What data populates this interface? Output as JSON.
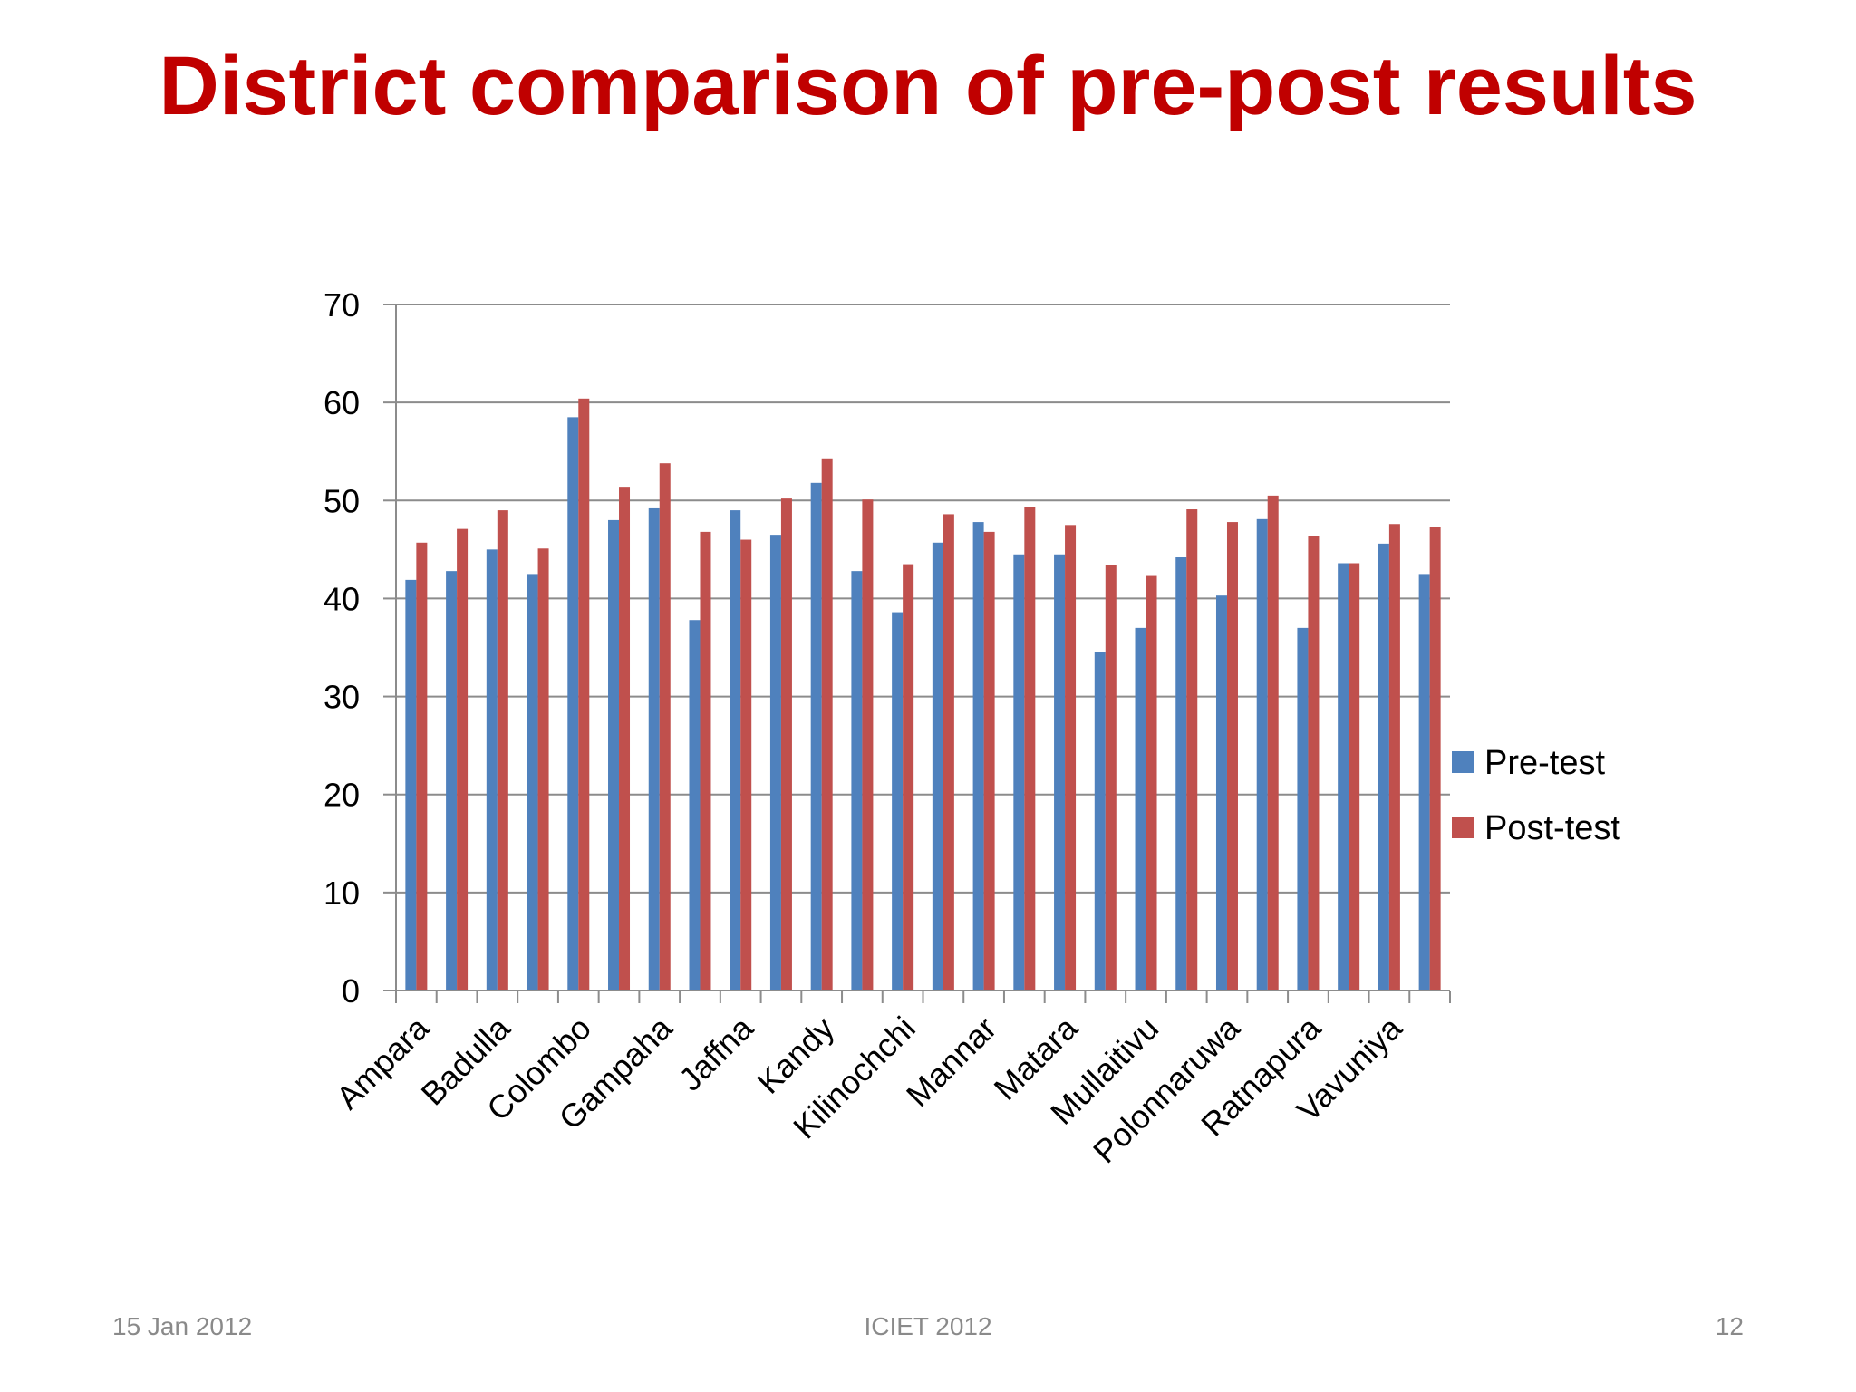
{
  "slide": {
    "title": "District comparison of pre-post results",
    "footer_date": "15 Jan 2012",
    "footer_conference": "ICIET 2012",
    "footer_page": "12",
    "title_color": "#c00000"
  },
  "chart_data": {
    "type": "bar",
    "title": "",
    "xlabel": "",
    "ylabel": "",
    "ylim": [
      0,
      70
    ],
    "yticks": [
      0,
      10,
      20,
      30,
      40,
      50,
      60,
      70
    ],
    "grid": true,
    "legend_position": "right",
    "categories": [
      "Ampara",
      "",
      "Badulla",
      "",
      "Colombo",
      "",
      "Gampaha",
      "",
      "Jaffna",
      "",
      "Kandy",
      "",
      "Kilinochchi",
      "",
      "Mannar",
      "",
      "Matara",
      "",
      "Mullaitivu",
      "",
      "Polonnaruwa",
      "",
      "Ratnapura",
      "",
      "Vavuniya",
      ""
    ],
    "series": [
      {
        "name": "Pre-test",
        "color": "#4f81bd",
        "values": [
          41.9,
          42.8,
          45.0,
          42.5,
          58.5,
          48.0,
          49.2,
          37.8,
          49.0,
          46.5,
          51.8,
          42.8,
          38.6,
          45.7,
          47.8,
          44.5,
          44.5,
          34.5,
          37.0,
          44.2,
          40.3,
          48.1,
          37.0,
          43.6,
          45.6,
          42.5
        ]
      },
      {
        "name": "Post-test",
        "color": "#c0504d",
        "values": [
          45.7,
          47.1,
          49.0,
          45.1,
          60.4,
          51.4,
          53.8,
          46.8,
          46.0,
          50.2,
          54.3,
          50.1,
          43.5,
          48.6,
          46.8,
          49.3,
          47.5,
          43.4,
          42.3,
          49.1,
          47.8,
          50.5,
          46.4,
          43.6,
          47.6,
          47.3
        ]
      }
    ]
  }
}
